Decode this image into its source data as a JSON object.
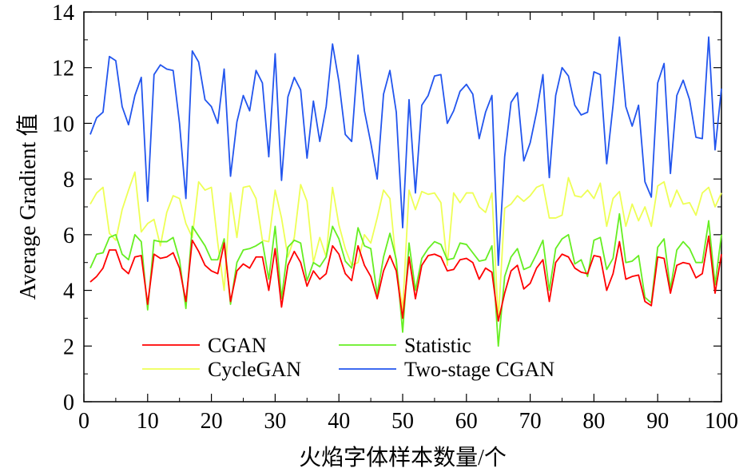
{
  "chart_data": {
    "type": "line",
    "title": "",
    "xlabel": "火焰字体样本数量/个",
    "ylabel": "Average Gradient 值",
    "xlim": [
      0,
      100
    ],
    "ylim": [
      0,
      14
    ],
    "xticks": [
      "0",
      "10",
      "20",
      "30",
      "40",
      "50",
      "60",
      "70",
      "80",
      "90",
      "100"
    ],
    "yticks": [
      "0",
      "2",
      "4",
      "6",
      "8",
      "10",
      "12",
      "14"
    ],
    "grid": false,
    "legend_position": "lower-left",
    "x": [
      1,
      2,
      3,
      4,
      5,
      6,
      7,
      8,
      9,
      10,
      11,
      12,
      13,
      14,
      15,
      16,
      17,
      18,
      19,
      20,
      21,
      22,
      23,
      24,
      25,
      26,
      27,
      28,
      29,
      30,
      31,
      32,
      33,
      34,
      35,
      36,
      37,
      38,
      39,
      40,
      41,
      42,
      43,
      44,
      45,
      46,
      47,
      48,
      49,
      50,
      51,
      52,
      53,
      54,
      55,
      56,
      57,
      58,
      59,
      60,
      61,
      62,
      63,
      64,
      65,
      66,
      67,
      68,
      69,
      70,
      71,
      72,
      73,
      74,
      75,
      76,
      77,
      78,
      79,
      80,
      81,
      82,
      83,
      84,
      85,
      86,
      87,
      88,
      89,
      90,
      91,
      92,
      93,
      94,
      95,
      96,
      97,
      98,
      99,
      100
    ],
    "series": [
      {
        "name": "CGAN",
        "color": "#ff0000",
        "values": [
          4.3,
          4.5,
          4.8,
          5.45,
          5.45,
          4.8,
          4.6,
          5.2,
          5.25,
          3.5,
          5.3,
          5.15,
          5.2,
          5.35,
          4.8,
          3.6,
          5.8,
          5.4,
          4.9,
          4.7,
          4.6,
          5.7,
          3.6,
          4.7,
          4.95,
          4.8,
          5.2,
          5.2,
          4.0,
          5.5,
          3.4,
          4.9,
          5.4,
          5.0,
          4.15,
          4.7,
          4.4,
          4.6,
          5.6,
          5.3,
          4.6,
          4.35,
          5.6,
          4.9,
          4.5,
          3.7,
          4.7,
          5.25,
          4.7,
          3.0,
          5.2,
          3.7,
          4.9,
          5.25,
          5.3,
          5.2,
          4.7,
          4.75,
          5.1,
          5.15,
          5.0,
          4.4,
          4.8,
          4.65,
          2.9,
          3.9,
          4.7,
          4.9,
          4.05,
          4.25,
          4.8,
          5.1,
          3.6,
          5.0,
          5.3,
          5.2,
          4.8,
          4.65,
          4.6,
          5.25,
          5.2,
          4.0,
          4.6,
          5.75,
          4.4,
          4.5,
          4.55,
          3.6,
          3.45,
          5.2,
          5.15,
          3.9,
          4.9,
          5.0,
          4.95,
          4.45,
          4.6,
          5.95,
          3.9,
          5.3
        ]
      },
      {
        "name": "Statistic",
        "color": "#66ee22",
        "values": [
          4.8,
          5.3,
          5.35,
          5.9,
          6.0,
          5.3,
          5.1,
          6.0,
          5.75,
          3.3,
          5.8,
          5.75,
          5.75,
          5.9,
          5.1,
          3.35,
          6.3,
          5.95,
          5.6,
          5.1,
          5.1,
          5.85,
          3.5,
          5.0,
          5.45,
          5.5,
          5.6,
          5.75,
          4.4,
          6.3,
          3.7,
          5.55,
          5.8,
          5.7,
          4.35,
          5.0,
          4.85,
          5.2,
          6.3,
          5.85,
          5.05,
          4.8,
          6.25,
          5.6,
          5.5,
          3.85,
          5.2,
          6.05,
          5.1,
          2.5,
          5.7,
          4.0,
          5.15,
          5.5,
          5.75,
          5.65,
          5.1,
          5.15,
          5.7,
          5.65,
          5.35,
          5.05,
          5.1,
          5.6,
          2.0,
          4.5,
          5.2,
          5.5,
          4.75,
          4.85,
          5.3,
          5.8,
          4.0,
          5.5,
          5.85,
          6.0,
          4.95,
          5.1,
          4.5,
          5.8,
          5.9,
          4.75,
          5.15,
          6.75,
          5.0,
          5.05,
          5.25,
          3.75,
          3.55,
          5.55,
          5.85,
          4.05,
          5.45,
          5.75,
          5.5,
          5.0,
          5.0,
          6.5,
          4.2,
          6.0
        ]
      },
      {
        "name": "CycleGAN",
        "color": "#eeff55",
        "values": [
          7.1,
          7.5,
          7.7,
          6.05,
          5.8,
          6.9,
          7.6,
          8.25,
          6.1,
          6.4,
          6.55,
          5.6,
          6.8,
          7.4,
          7.3,
          6.4,
          5.9,
          7.9,
          7.6,
          7.7,
          5.7,
          4.0,
          7.5,
          5.9,
          7.7,
          7.75,
          7.3,
          5.8,
          5.75,
          7.6,
          6.6,
          5.2,
          5.9,
          7.8,
          7.2,
          5.0,
          5.9,
          5.2,
          7.7,
          6.35,
          5.5,
          4.9,
          5.0,
          6.0,
          5.7,
          6.6,
          7.6,
          7.3,
          4.9,
          3.3,
          7.6,
          6.9,
          7.55,
          7.45,
          7.5,
          7.15,
          4.9,
          7.5,
          7.15,
          7.5,
          7.5,
          7.0,
          6.8,
          7.5,
          2.9,
          6.95,
          7.1,
          7.4,
          7.2,
          7.4,
          7.7,
          7.8,
          6.6,
          6.6,
          6.7,
          8.05,
          7.4,
          7.35,
          7.6,
          7.3,
          7.85,
          6.3,
          7.3,
          7.55,
          6.3,
          7.1,
          6.5,
          7.0,
          6.3,
          7.75,
          7.9,
          7.0,
          7.6,
          7.1,
          7.15,
          6.7,
          7.5,
          7.7,
          7.0,
          7.5
        ]
      },
      {
        "name": "Two-stage CGAN",
        "color": "#2255ee",
        "values": [
          9.6,
          10.2,
          10.4,
          12.4,
          12.25,
          10.6,
          9.95,
          11.0,
          11.65,
          7.2,
          11.75,
          12.1,
          11.95,
          11.9,
          10.0,
          7.3,
          12.6,
          12.2,
          10.85,
          10.6,
          10.0,
          11.95,
          8.1,
          10.05,
          11.0,
          10.45,
          11.9,
          11.45,
          8.8,
          12.5,
          7.95,
          10.95,
          11.65,
          11.2,
          8.75,
          10.8,
          9.35,
          10.6,
          12.85,
          11.5,
          9.6,
          9.35,
          12.45,
          10.45,
          9.3,
          8.0,
          11.05,
          11.9,
          10.4,
          6.25,
          10.85,
          7.5,
          10.65,
          11.0,
          11.7,
          11.75,
          10.0,
          10.45,
          11.15,
          11.4,
          11.05,
          9.45,
          10.4,
          11.0,
          4.9,
          8.8,
          10.75,
          11.1,
          8.65,
          9.3,
          10.4,
          11.75,
          8.05,
          11.0,
          12.0,
          11.7,
          10.65,
          10.3,
          10.4,
          11.85,
          11.75,
          8.55,
          10.65,
          13.1,
          10.6,
          9.9,
          10.65,
          7.9,
          7.35,
          11.45,
          12.15,
          8.2,
          11.0,
          11.55,
          10.85,
          9.5,
          9.45,
          13.1,
          9.05,
          11.25
        ]
      }
    ]
  }
}
